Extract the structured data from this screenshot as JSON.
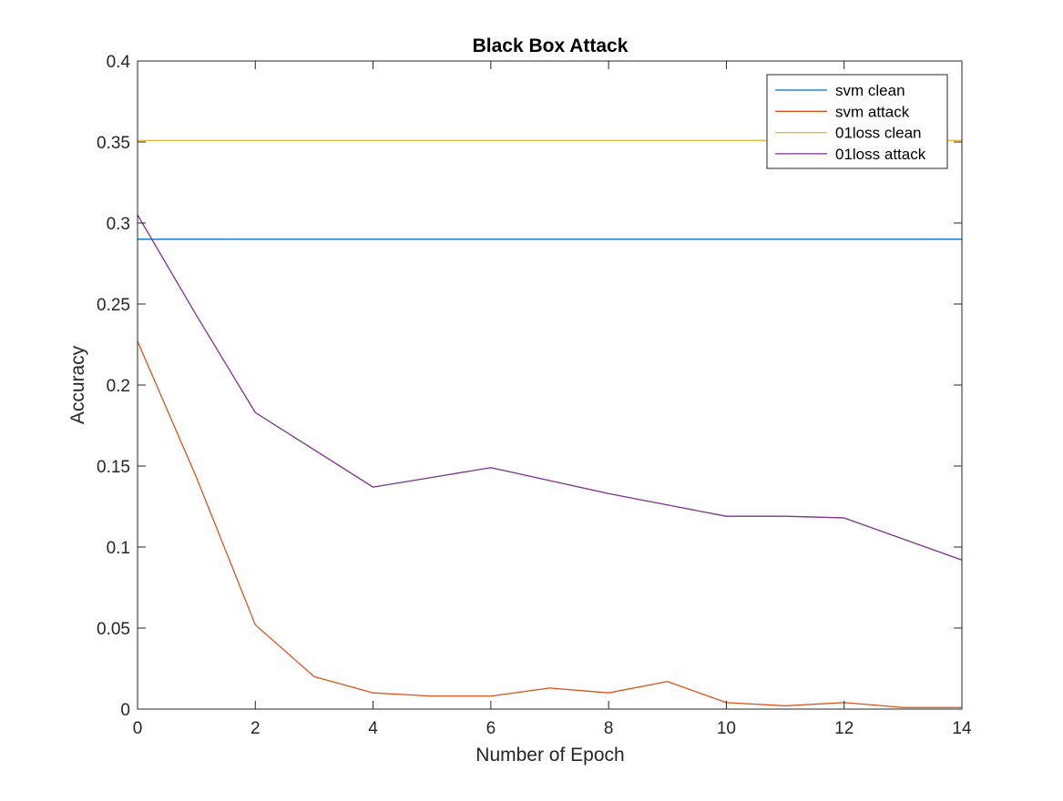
{
  "chart_data": {
    "type": "line",
    "title": "Black Box Attack",
    "xlabel": "Number of Epoch",
    "ylabel": "Accuracy",
    "xlim": [
      0,
      14
    ],
    "ylim": [
      0,
      0.4
    ],
    "xticks": [
      0,
      2,
      4,
      6,
      8,
      10,
      12,
      14
    ],
    "yticks": [
      0,
      0.05,
      0.1,
      0.15,
      0.2,
      0.25,
      0.3,
      0.35,
      0.4
    ],
    "xtick_labels": [
      "0",
      "2",
      "4",
      "6",
      "8",
      "10",
      "12",
      "14"
    ],
    "ytick_labels": [
      "0",
      "0.05",
      "0.1",
      "0.15",
      "0.2",
      "0.25",
      "0.3",
      "0.35",
      "0.4"
    ],
    "grid": false,
    "box": true,
    "legend_position": "top-right",
    "x": [
      0,
      1,
      2,
      3,
      4,
      5,
      6,
      7,
      8,
      9,
      10,
      11,
      12,
      13,
      14
    ],
    "series": [
      {
        "name": "svm clean",
        "color": "#0072BD",
        "values": [
          0.29,
          0.29,
          0.29,
          0.29,
          0.29,
          0.29,
          0.29,
          0.29,
          0.29,
          0.29,
          0.29,
          0.29,
          0.29,
          0.29,
          0.29
        ]
      },
      {
        "name": "svm attack",
        "color": "#D95319",
        "values": [
          0.227,
          0.143,
          0.052,
          0.02,
          0.01,
          0.008,
          0.008,
          0.013,
          0.01,
          0.017,
          0.004,
          0.002,
          0.004,
          0.001,
          0.001
        ]
      },
      {
        "name": "01loss clean",
        "color": "#EDB120",
        "values": [
          0.351,
          0.351,
          0.351,
          0.351,
          0.351,
          0.351,
          0.351,
          0.351,
          0.351,
          0.351,
          0.351,
          0.351,
          0.351,
          0.351,
          0.351
        ]
      },
      {
        "name": "01loss attack",
        "color": "#7E2F8E",
        "values": [
          0.305,
          0.243,
          0.183,
          0.16,
          0.137,
          0.143,
          0.149,
          0.141,
          0.133,
          0.126,
          0.119,
          0.119,
          0.118,
          0.105,
          0.092
        ]
      }
    ]
  }
}
